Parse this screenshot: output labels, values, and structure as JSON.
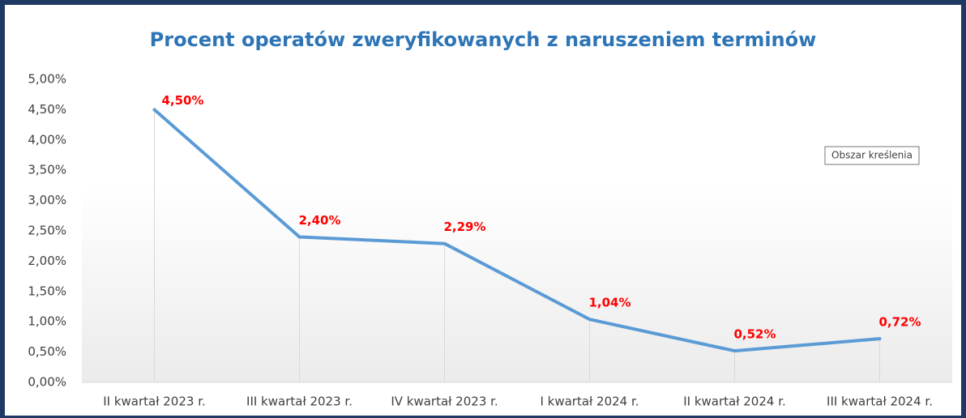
{
  "chart_data": {
    "type": "line",
    "title": "Procent operatów zweryfikowanych z naruszeniem terminów",
    "categories": [
      "II kwartał 2023 r.",
      "III kwartał 2023 r.",
      "IV kwartał 2023 r.",
      "I kwartał 2024 r.",
      "II kwartał 2024 r.",
      "III kwartał 2024 r."
    ],
    "values": [
      4.5,
      2.4,
      2.29,
      1.04,
      0.52,
      0.72
    ],
    "value_labels": [
      "4,50%",
      "2,40%",
      "2,29%",
      "1,04%",
      "0,52%",
      "0,72%"
    ],
    "color": "#5b9bd5",
    "ylim": [
      0,
      5
    ],
    "yticks": [
      {
        "value": 0,
        "label": "0,00%"
      },
      {
        "value": 0.5,
        "label": "0,50%"
      },
      {
        "value": 1,
        "label": "1,00%"
      },
      {
        "value": 1.5,
        "label": "1,50%"
      },
      {
        "value": 2,
        "label": "2,00%"
      },
      {
        "value": 2.5,
        "label": "2,50%"
      },
      {
        "value": 3,
        "label": "3,00%"
      },
      {
        "value": 3.5,
        "label": "3,50%"
      },
      {
        "value": 4,
        "label": "4,00%"
      },
      {
        "value": 4.5,
        "label": "4,50%"
      },
      {
        "value": 5,
        "label": "5,00%"
      }
    ],
    "tooltip": "Obszar kreślenia"
  }
}
